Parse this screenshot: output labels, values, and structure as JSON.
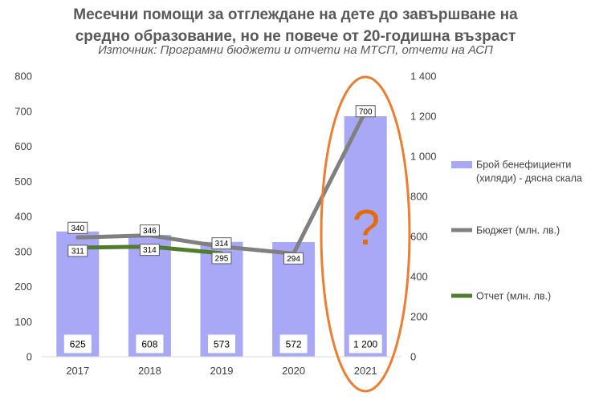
{
  "title_line1": "Месечни помощи за отглеждане на дете до завършване на",
  "title_line2": "средно образование, но не повече от 20-годишна възраст",
  "subtitle": "Източник: Програмни бюджети и отчети на МТСП, отчети на АСП",
  "annotation_mark": "?",
  "colors": {
    "bars": "#A9A8F7",
    "budget": "#808080",
    "report": "#4E7D2B",
    "highlight": "#ED7D31"
  },
  "chart_data": {
    "type": "bar",
    "categories": [
      "2017",
      "2018",
      "2019",
      "2020",
      "2021"
    ],
    "left_axis": {
      "min": 0,
      "max": 800,
      "ticks": [
        "0",
        "100",
        "200",
        "300",
        "400",
        "500",
        "600",
        "700",
        "800"
      ]
    },
    "right_axis": {
      "min": 0,
      "max": 1400,
      "ticks": [
        "0",
        "200",
        "400",
        "600",
        "800",
        "1 000",
        "1 200",
        "1 400"
      ]
    },
    "series": [
      {
        "name": "Брой бенефициенти (хиляди) - дясна скала",
        "type": "bar",
        "axis": "right",
        "values": [
          625,
          608,
          573,
          572,
          1200
        ],
        "labels": [
          "625",
          "608",
          "573",
          "572",
          "1 200"
        ]
      },
      {
        "name": "Бюджет (млн. лв.)",
        "type": "line",
        "axis": "left",
        "values": [
          340,
          346,
          314,
          294,
          700
        ],
        "labels": [
          "340",
          "346",
          "314",
          "294",
          "700"
        ]
      },
      {
        "name": "Отчет (млн. лв.)",
        "type": "line",
        "axis": "left",
        "values": [
          311,
          314,
          295,
          null,
          null
        ],
        "labels": [
          "311",
          "314",
          "295",
          "",
          ""
        ]
      }
    ],
    "legend_position": "right",
    "grid": false
  }
}
